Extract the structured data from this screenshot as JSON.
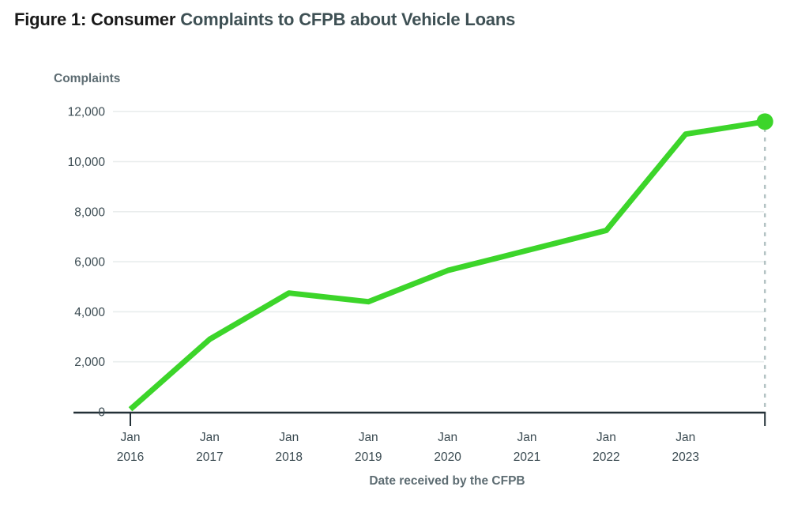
{
  "title": {
    "prefix": "Figure 1: Consumer",
    "emphasis": "Complaints to CFPB about Vehicle Loans"
  },
  "chart_data": {
    "type": "line",
    "title": "Figure 1: Consumer Complaints to CFPB about Vehicle Loans",
    "xlabel": "Date received by the CFPB",
    "ylabel": "Complaints",
    "ylim": [
      0,
      12000
    ],
    "xlim": [
      2016,
      2024
    ],
    "grid": "horizontal",
    "yticks": [
      {
        "value": 0,
        "label": "0"
      },
      {
        "value": 2000,
        "label": "2,000"
      },
      {
        "value": 4000,
        "label": "4,000"
      },
      {
        "value": 6000,
        "label": "6,000"
      },
      {
        "value": 8000,
        "label": "8,000"
      },
      {
        "value": 10000,
        "label": "10,000"
      },
      {
        "value": 12000,
        "label": "12,000"
      }
    ],
    "xticks": [
      {
        "x": 2016,
        "line1": "Jan",
        "line2": "2016"
      },
      {
        "x": 2017,
        "line1": "Jan",
        "line2": "2017"
      },
      {
        "x": 2018,
        "line1": "Jan",
        "line2": "2018"
      },
      {
        "x": 2019,
        "line1": "Jan",
        "line2": "2019"
      },
      {
        "x": 2020,
        "line1": "Jan",
        "line2": "2020"
      },
      {
        "x": 2021,
        "line1": "Jan",
        "line2": "2021"
      },
      {
        "x": 2022,
        "line1": "Jan",
        "line2": "2022"
      },
      {
        "x": 2023,
        "line1": "Jan",
        "line2": "2023"
      },
      {
        "x": 2024,
        "line1": "",
        "line2": ""
      }
    ],
    "axis_tick_marks_at": [
      2016,
      2024
    ],
    "series": [
      {
        "name": "complaints",
        "points": [
          {
            "x": 2016,
            "value": 100
          },
          {
            "x": 2017,
            "value": 2900
          },
          {
            "x": 2018,
            "value": 4750
          },
          {
            "x": 2019,
            "value": 4400
          },
          {
            "x": 2020,
            "value": 5650
          },
          {
            "x": 2021,
            "value": 6450
          },
          {
            "x": 2022,
            "value": 7250
          },
          {
            "x": 2023,
            "value": 11100
          },
          {
            "x": 2024,
            "value": 11600
          }
        ]
      }
    ],
    "end_marker": {
      "x": 2024,
      "value": 11600,
      "has_dashed_dropline": true
    },
    "colors": {
      "line": "#3cd52a",
      "marker": "#3cd52a",
      "grid": "#e9eded",
      "axis": "#233037",
      "dashed_dropline": "#b3c2c3",
      "tick_text": "#3b4b52",
      "axis_title_text": "#5d6c72",
      "title_text": "#1a1a1a",
      "title_emphasis": "#3e5054"
    }
  }
}
